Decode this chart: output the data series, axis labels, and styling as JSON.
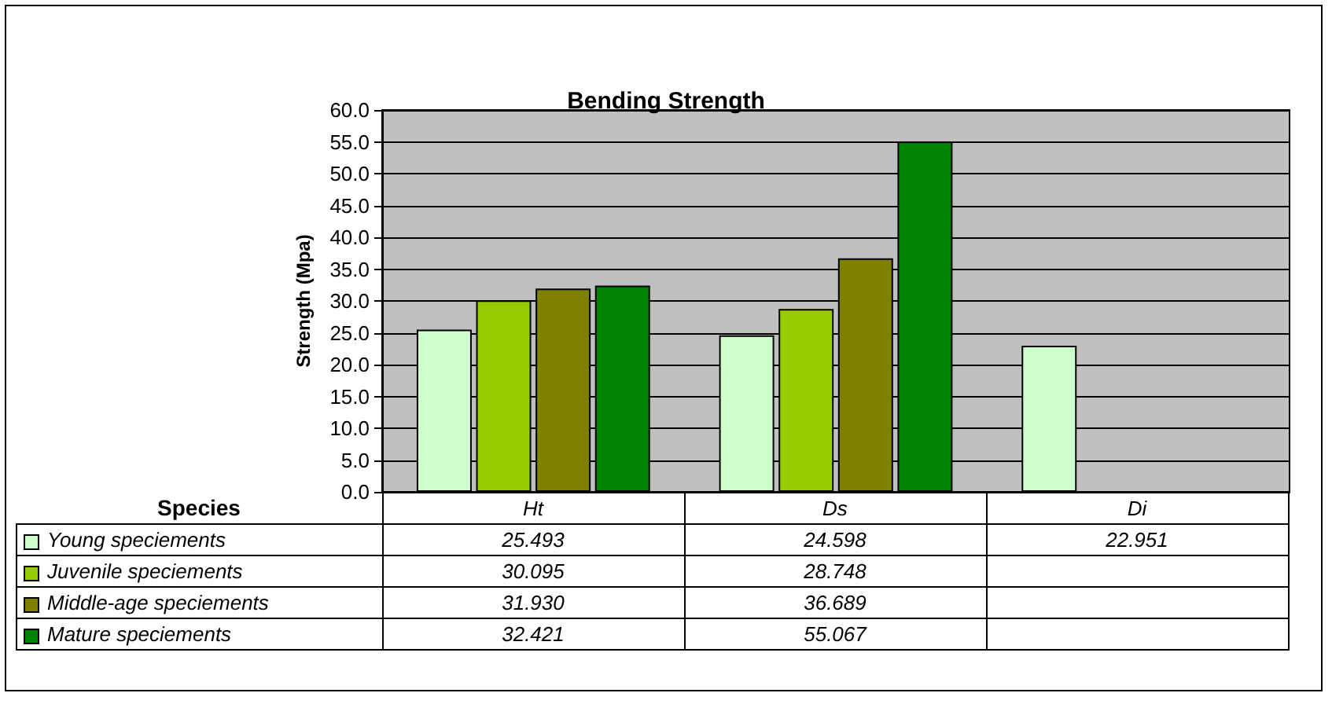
{
  "chart_data": {
    "type": "bar",
    "title": "Bending Strength",
    "ylabel": "Strength (Mpa)",
    "xlabel": "Species",
    "categories": [
      "Ht",
      "Ds",
      "Di"
    ],
    "series": [
      {
        "name": "Young speciements",
        "color": "#ccffcc",
        "values": [
          25.493,
          24.598,
          22.951
        ],
        "value_labels": [
          "25.493",
          "24.598",
          "22.951"
        ]
      },
      {
        "name": "Juvenile speciements",
        "color": "#99cc00",
        "values": [
          30.095,
          28.748,
          null
        ],
        "value_labels": [
          "30.095",
          "28.748",
          null
        ]
      },
      {
        "name": "Middle-age speciements",
        "color": "#808000",
        "values": [
          31.93,
          36.689,
          null
        ],
        "value_labels": [
          "31.930",
          "36.689",
          null
        ]
      },
      {
        "name": "Mature speciements",
        "color": "#008000",
        "values": [
          32.421,
          55.067,
          null
        ],
        "value_labels": [
          "32.421",
          "55.067",
          null
        ]
      }
    ],
    "ylim": [
      0,
      60
    ],
    "yticks": [
      {
        "value": 0,
        "label": "0.0"
      },
      {
        "value": 5,
        "label": "5.0"
      },
      {
        "value": 10,
        "label": "10.0"
      },
      {
        "value": 15,
        "label": "15.0"
      },
      {
        "value": 20,
        "label": "20.0"
      },
      {
        "value": 25,
        "label": "25.0"
      },
      {
        "value": 30,
        "label": "30.0"
      },
      {
        "value": 35,
        "label": "35.0"
      },
      {
        "value": 40,
        "label": "40.0"
      },
      {
        "value": 45,
        "label": "45.0"
      },
      {
        "value": 50,
        "label": "50.0"
      },
      {
        "value": 55,
        "label": "55.0"
      },
      {
        "value": 60,
        "label": "60.0"
      }
    ],
    "grid": "y",
    "legend": "bottom left"
  }
}
